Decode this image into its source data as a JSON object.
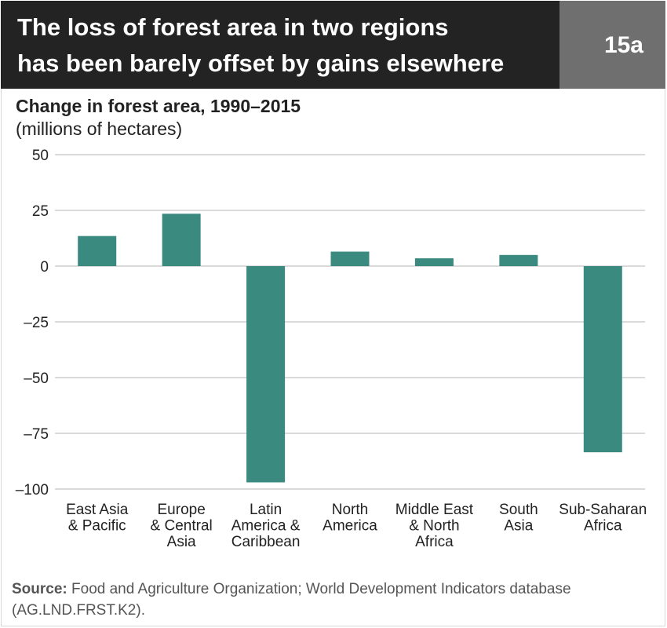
{
  "header": {
    "title_line1": "The loss of forest area in two regions",
    "title_line2": "has been barely offset by gains elsewhere",
    "badge": "15a"
  },
  "chart_data": {
    "type": "bar",
    "title": "Change in forest area, 1990–2015",
    "ylabel": "(millions of hectares)",
    "xlabel": "",
    "categories": [
      [
        "East Asia",
        "& Pacific"
      ],
      [
        "Europe",
        "& Central",
        "Asia"
      ],
      [
        "Latin",
        "America &",
        "Caribbean"
      ],
      [
        "North",
        "America"
      ],
      [
        "Middle East",
        "& North",
        "Africa"
      ],
      [
        "South",
        "Asia"
      ],
      [
        "Sub-Saharan",
        "Africa"
      ]
    ],
    "values": [
      13.5,
      23.5,
      -97,
      6.5,
      3.5,
      5,
      -83.5
    ],
    "ylim": [
      -100,
      50
    ],
    "yticks": [
      50,
      25,
      0,
      -25,
      -50,
      -75,
      -100
    ],
    "ytick_labels": [
      "50",
      "25",
      "0",
      "–25",
      "–50",
      "–75",
      "–100"
    ],
    "grid": true,
    "bar_color": "#3b8a80"
  },
  "source": {
    "label": "Source:",
    "text": "Food and Agriculture Organization; World Development Indicators database (AG.LND.FRST.K2)."
  }
}
